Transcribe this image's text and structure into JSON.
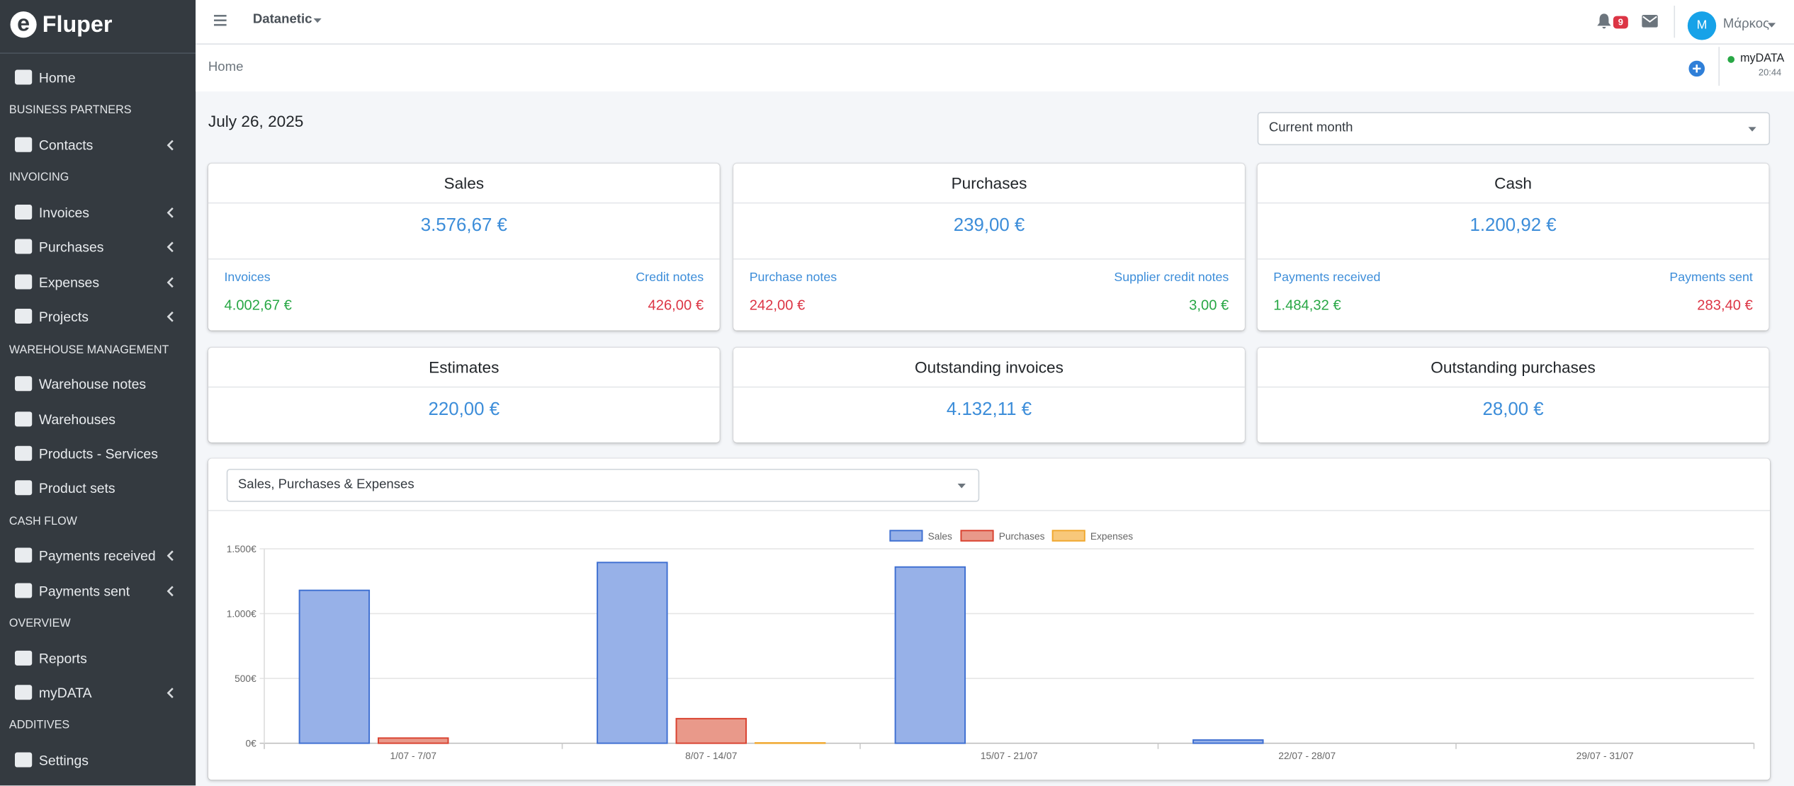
{
  "sidebar": {
    "brand": "Fluper",
    "menu": [
      {
        "items": [
          {
            "label": "Home"
          }
        ]
      },
      {
        "section": "BUSINESS PARTNERS",
        "items": [
          {
            "label": "Contacts",
            "submenu": true
          }
        ]
      },
      {
        "section": "INVOICING",
        "items": [
          {
            "label": "Invoices",
            "submenu": true
          },
          {
            "label": "Purchases",
            "submenu": true
          },
          {
            "label": "Expenses",
            "submenu": true
          },
          {
            "label": "Projects",
            "submenu": true
          }
        ]
      },
      {
        "section": "WAREHOUSE MANAGEMENT",
        "items": [
          {
            "label": "Warehouse notes"
          },
          {
            "label": "Warehouses"
          },
          {
            "label": "Products - Services"
          },
          {
            "label": "Product sets"
          }
        ]
      },
      {
        "section": "CASH FLOW",
        "items": [
          {
            "label": "Payments received",
            "submenu": true
          },
          {
            "label": "Payments sent",
            "submenu": true
          }
        ]
      },
      {
        "section": "OVERVIEW",
        "items": [
          {
            "label": "Reports"
          },
          {
            "label": "myDATA",
            "submenu": true
          }
        ]
      },
      {
        "section": "ADDITIVES",
        "items": [
          {
            "label": "Settings"
          }
        ]
      }
    ]
  },
  "header": {
    "company": "Datanetic",
    "notifications": "9",
    "avatar": "M",
    "user": "Μάρκος"
  },
  "breadcrumb": {
    "current": "Home",
    "status": "myDATA",
    "time": "20:44"
  },
  "date": "July 26, 2025",
  "period": "Current month",
  "cards": [
    {
      "title": "Sales",
      "value": "3.576,67 €",
      "left": {
        "label": "Invoices",
        "value": "4.002,67 €",
        "color": "#28a745"
      },
      "right": {
        "label": "Credit notes",
        "value": "426,00 €",
        "color": "#dc3545"
      }
    },
    {
      "title": "Purchases",
      "value": "239,00 €",
      "left": {
        "label": "Purchase notes",
        "value": "242,00 €",
        "color": "#dc3545"
      },
      "right": {
        "label": "Supplier credit notes",
        "value": "3,00 €",
        "color": "#28a745"
      }
    },
    {
      "title": "Cash",
      "value": "1.200,92 €",
      "left": {
        "label": "Payments received",
        "value": "1.484,32 €",
        "color": "#28a745"
      },
      "right": {
        "label": "Payments sent",
        "value": "283,40 €",
        "color": "#dc3545"
      }
    },
    {
      "title": "Estimates",
      "value": "220,00 €"
    },
    {
      "title": "Outstanding invoices",
      "value": "4.132,11 €"
    },
    {
      "title": "Outstanding purchases",
      "value": "28,00 €"
    }
  ],
  "chart_select": "Sales, Purchases & Expenses",
  "chart_data": {
    "type": "bar",
    "categories": [
      "1/07 - 7/07",
      "8/07 - 14/07",
      "15/07 - 21/07",
      "22/07 - 28/07",
      "29/07 - 31/07"
    ],
    "series": [
      {
        "name": "Sales",
        "color": "#97b1e8",
        "border": "#3e6fd1",
        "values": [
          1180,
          1395,
          1360,
          25,
          0
        ]
      },
      {
        "name": "Purchases",
        "color": "#e9998a",
        "border": "#d9412f",
        "values": [
          40,
          190,
          0,
          0,
          0
        ]
      },
      {
        "name": "Expenses",
        "color": "#f8c87a",
        "border": "#f0a82f",
        "values": [
          0,
          3,
          0,
          0,
          0
        ]
      }
    ],
    "ylim": [
      0,
      1500
    ],
    "yticks": [
      {
        "value": 0,
        "label": "0€"
      },
      {
        "value": 500,
        "label": "500€"
      },
      {
        "value": 1000,
        "label": "1.000€"
      },
      {
        "value": 1500,
        "label": "1.500€"
      }
    ],
    "grid": true,
    "legend": "top"
  }
}
